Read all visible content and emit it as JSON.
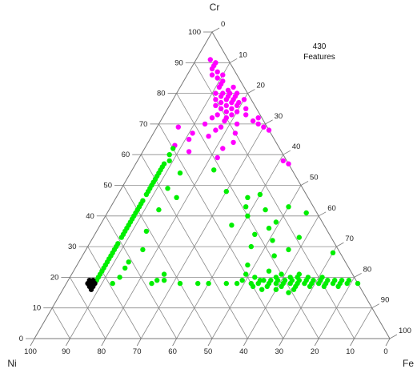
{
  "legend": {
    "count": "430",
    "label": "Features"
  },
  "chart_data": {
    "type": "scatter",
    "subtype": "ternary",
    "title": "",
    "vertices": {
      "top": "Cr",
      "left": "Ni",
      "right": "Fe"
    },
    "ticks": [
      0,
      10,
      20,
      30,
      40,
      50,
      60,
      70,
      80,
      90,
      100
    ],
    "grid": true,
    "legend_placement": "top-right",
    "series": [
      {
        "color": "#ff00ff",
        "points": [
          {
            "Cr": 91,
            "Ni": 5,
            "Fe": 4
          },
          {
            "Cr": 90,
            "Ni": 4,
            "Fe": 6
          },
          {
            "Cr": 89,
            "Ni": 5,
            "Fe": 6
          },
          {
            "Cr": 88,
            "Ni": 6,
            "Fe": 6
          },
          {
            "Cr": 87,
            "Ni": 5,
            "Fe": 8
          },
          {
            "Cr": 86,
            "Ni": 7,
            "Fe": 7
          },
          {
            "Cr": 86,
            "Ni": 4,
            "Fe": 10
          },
          {
            "Cr": 85,
            "Ni": 6,
            "Fe": 9
          },
          {
            "Cr": 84,
            "Ni": 5,
            "Fe": 11
          },
          {
            "Cr": 83,
            "Ni": 6,
            "Fe": 11
          },
          {
            "Cr": 82,
            "Ni": 7,
            "Fe": 11
          },
          {
            "Cr": 82,
            "Ni": 3,
            "Fe": 15
          },
          {
            "Cr": 81,
            "Ni": 5,
            "Fe": 14
          },
          {
            "Cr": 80,
            "Ni": 9,
            "Fe": 11
          },
          {
            "Cr": 80,
            "Ni": 7,
            "Fe": 13
          },
          {
            "Cr": 80,
            "Ni": 5,
            "Fe": 15
          },
          {
            "Cr": 80,
            "Ni": 3,
            "Fe": 17
          },
          {
            "Cr": 79,
            "Ni": 8,
            "Fe": 13
          },
          {
            "Cr": 79,
            "Ni": 6,
            "Fe": 15
          },
          {
            "Cr": 79,
            "Ni": 4,
            "Fe": 17
          },
          {
            "Cr": 78,
            "Ni": 10,
            "Fe": 12
          },
          {
            "Cr": 78,
            "Ni": 7,
            "Fe": 15
          },
          {
            "Cr": 78,
            "Ni": 5,
            "Fe": 17
          },
          {
            "Cr": 78,
            "Ni": 2,
            "Fe": 20
          },
          {
            "Cr": 77,
            "Ni": 9,
            "Fe": 14
          },
          {
            "Cr": 77,
            "Ni": 6,
            "Fe": 17
          },
          {
            "Cr": 77,
            "Ni": 4,
            "Fe": 19
          },
          {
            "Cr": 76,
            "Ni": 11,
            "Fe": 13
          },
          {
            "Cr": 76,
            "Ni": 8,
            "Fe": 16
          },
          {
            "Cr": 76,
            "Ni": 5,
            "Fe": 19
          },
          {
            "Cr": 75,
            "Ni": 10,
            "Fe": 15
          },
          {
            "Cr": 75,
            "Ni": 7,
            "Fe": 18
          },
          {
            "Cr": 75,
            "Ni": 3,
            "Fe": 22
          },
          {
            "Cr": 74,
            "Ni": 9,
            "Fe": 17
          },
          {
            "Cr": 74,
            "Ni": 6,
            "Fe": 20
          },
          {
            "Cr": 73,
            "Ni": 12,
            "Fe": 15
          },
          {
            "Cr": 73,
            "Ni": 8,
            "Fe": 19
          },
          {
            "Cr": 73,
            "Ni": 4,
            "Fe": 23
          },
          {
            "Cr": 72,
            "Ni": 14,
            "Fe": 14
          },
          {
            "Cr": 72,
            "Ni": 10,
            "Fe": 18
          },
          {
            "Cr": 72,
            "Ni": 1,
            "Fe": 27
          },
          {
            "Cr": 71,
            "Ni": 11,
            "Fe": 18
          },
          {
            "Cr": 71,
            "Ni": 3,
            "Fe": 26
          },
          {
            "Cr": 70,
            "Ni": 17,
            "Fe": 13
          },
          {
            "Cr": 70,
            "Ni": 8,
            "Fe": 22
          },
          {
            "Cr": 70,
            "Ni": 2,
            "Fe": 28
          },
          {
            "Cr": 69,
            "Ni": 25,
            "Fe": 6
          },
          {
            "Cr": 69,
            "Ni": 13,
            "Fe": 18
          },
          {
            "Cr": 69,
            "Ni": 1,
            "Fe": 30
          },
          {
            "Cr": 68,
            "Ni": 15,
            "Fe": 17
          },
          {
            "Cr": 68,
            "Ni": 0,
            "Fe": 32
          },
          {
            "Cr": 67,
            "Ni": 22,
            "Fe": 11
          },
          {
            "Cr": 67,
            "Ni": 10,
            "Fe": 23
          },
          {
            "Cr": 66,
            "Ni": 18,
            "Fe": 16
          },
          {
            "Cr": 65,
            "Ni": 24,
            "Fe": 11
          },
          {
            "Cr": 64,
            "Ni": 12,
            "Fe": 24
          },
          {
            "Cr": 63,
            "Ni": 29,
            "Fe": 8
          },
          {
            "Cr": 62,
            "Ni": 16,
            "Fe": 22
          },
          {
            "Cr": 61,
            "Ni": 26,
            "Fe": 13
          },
          {
            "Cr": 59,
            "Ni": 19,
            "Fe": 22
          },
          {
            "Cr": 58,
            "Ni": 1,
            "Fe": 41
          },
          {
            "Cr": 57,
            "Ni": 0,
            "Fe": 43
          }
        ]
      },
      {
        "color": "#00ee00",
        "points": [
          {
            "Cr": 62,
            "Ni": 30,
            "Fe": 8
          },
          {
            "Cr": 60,
            "Ni": 32,
            "Fe": 8
          },
          {
            "Cr": 58,
            "Ni": 33,
            "Fe": 9
          },
          {
            "Cr": 57,
            "Ni": 35,
            "Fe": 8
          },
          {
            "Cr": 56,
            "Ni": 36,
            "Fe": 8
          },
          {
            "Cr": 55,
            "Ni": 37,
            "Fe": 8
          },
          {
            "Cr": 54,
            "Ni": 38,
            "Fe": 8
          },
          {
            "Cr": 53,
            "Ni": 39,
            "Fe": 8
          },
          {
            "Cr": 52,
            "Ni": 40,
            "Fe": 8
          },
          {
            "Cr": 51,
            "Ni": 41,
            "Fe": 8
          },
          {
            "Cr": 50,
            "Ni": 42,
            "Fe": 8
          },
          {
            "Cr": 49,
            "Ni": 43,
            "Fe": 8
          },
          {
            "Cr": 48,
            "Ni": 44,
            "Fe": 8
          },
          {
            "Cr": 47,
            "Ni": 45,
            "Fe": 8
          },
          {
            "Cr": 45,
            "Ni": 47,
            "Fe": 8
          },
          {
            "Cr": 44,
            "Ni": 48,
            "Fe": 8
          },
          {
            "Cr": 43,
            "Ni": 49,
            "Fe": 8
          },
          {
            "Cr": 42,
            "Ni": 50,
            "Fe": 8
          },
          {
            "Cr": 41,
            "Ni": 51,
            "Fe": 8
          },
          {
            "Cr": 40,
            "Ni": 52,
            "Fe": 8
          },
          {
            "Cr": 39,
            "Ni": 53,
            "Fe": 8
          },
          {
            "Cr": 38,
            "Ni": 54,
            "Fe": 8
          },
          {
            "Cr": 37,
            "Ni": 55,
            "Fe": 8
          },
          {
            "Cr": 36,
            "Ni": 56,
            "Fe": 8
          },
          {
            "Cr": 35,
            "Ni": 57,
            "Fe": 8
          },
          {
            "Cr": 34,
            "Ni": 58,
            "Fe": 8
          },
          {
            "Cr": 33,
            "Ni": 59,
            "Fe": 8
          },
          {
            "Cr": 31,
            "Ni": 61,
            "Fe": 8
          },
          {
            "Cr": 30,
            "Ni": 62,
            "Fe": 8
          },
          {
            "Cr": 29,
            "Ni": 63,
            "Fe": 8
          },
          {
            "Cr": 28,
            "Ni": 64,
            "Fe": 8
          },
          {
            "Cr": 27,
            "Ni": 65,
            "Fe": 8
          },
          {
            "Cr": 26,
            "Ni": 66,
            "Fe": 8
          },
          {
            "Cr": 25,
            "Ni": 67,
            "Fe": 8
          },
          {
            "Cr": 24,
            "Ni": 68,
            "Fe": 8
          },
          {
            "Cr": 23,
            "Ni": 69,
            "Fe": 8
          },
          {
            "Cr": 22,
            "Ni": 70,
            "Fe": 8
          },
          {
            "Cr": 21,
            "Ni": 71,
            "Fe": 8
          },
          {
            "Cr": 20,
            "Ni": 72,
            "Fe": 8
          },
          {
            "Cr": 19,
            "Ni": 73,
            "Fe": 8
          },
          {
            "Cr": 54,
            "Ni": 32,
            "Fe": 14
          },
          {
            "Cr": 49,
            "Ni": 38,
            "Fe": 13
          },
          {
            "Cr": 46,
            "Ni": 37,
            "Fe": 17
          },
          {
            "Cr": 42,
            "Ni": 44,
            "Fe": 14
          },
          {
            "Cr": 35,
            "Ni": 51,
            "Fe": 14
          },
          {
            "Cr": 29,
            "Ni": 55,
            "Fe": 16
          },
          {
            "Cr": 25,
            "Ni": 61,
            "Fe": 14
          },
          {
            "Cr": 23,
            "Ni": 63,
            "Fe": 14
          },
          {
            "Cr": 20,
            "Ni": 66,
            "Fe": 14
          },
          {
            "Cr": 18,
            "Ni": 69,
            "Fe": 13
          },
          {
            "Cr": 55,
            "Ni": 22,
            "Fe": 23
          },
          {
            "Cr": 48,
            "Ni": 22,
            "Fe": 30
          },
          {
            "Cr": 46,
            "Ni": 17,
            "Fe": 37
          },
          {
            "Cr": 43,
            "Ni": 19,
            "Fe": 38
          },
          {
            "Cr": 42,
            "Ni": 14,
            "Fe": 44
          },
          {
            "Cr": 40,
            "Ni": 20,
            "Fe": 40
          },
          {
            "Cr": 38,
            "Ni": 13,
            "Fe": 49
          },
          {
            "Cr": 37,
            "Ni": 26,
            "Fe": 37
          },
          {
            "Cr": 36,
            "Ni": 16,
            "Fe": 48
          },
          {
            "Cr": 34,
            "Ni": 21,
            "Fe": 45
          },
          {
            "Cr": 32,
            "Ni": 17,
            "Fe": 51
          },
          {
            "Cr": 30,
            "Ni": 24,
            "Fe": 46
          },
          {
            "Cr": 29,
            "Ni": 14,
            "Fe": 57
          },
          {
            "Cr": 27,
            "Ni": 19,
            "Fe": 54
          },
          {
            "Cr": 24,
            "Ni": 28,
            "Fe": 48
          },
          {
            "Cr": 22,
            "Ni": 23,
            "Fe": 55
          },
          {
            "Cr": 20,
            "Ni": 16,
            "Fe": 64
          },
          {
            "Cr": 47,
            "Ni": 13,
            "Fe": 40
          },
          {
            "Cr": 43,
            "Ni": 7,
            "Fe": 50
          },
          {
            "Cr": 41,
            "Ni": 3,
            "Fe": 56
          },
          {
            "Cr": 33,
            "Ni": 9,
            "Fe": 58
          },
          {
            "Cr": 28,
            "Ni": 2,
            "Fe": 70
          },
          {
            "Cr": 21,
            "Ni": 53,
            "Fe": 26
          },
          {
            "Cr": 19,
            "Ni": 56,
            "Fe": 25
          },
          {
            "Cr": 19,
            "Ni": 54,
            "Fe": 27
          },
          {
            "Cr": 18,
            "Ni": 34,
            "Fe": 48
          },
          {
            "Cr": 18,
            "Ni": 30,
            "Fe": 52
          },
          {
            "Cr": 19,
            "Ni": 32,
            "Fe": 49
          },
          {
            "Cr": 18,
            "Ni": 37,
            "Fe": 45
          },
          {
            "Cr": 19,
            "Ni": 27,
            "Fe": 54
          },
          {
            "Cr": 18,
            "Ni": 42,
            "Fe": 40
          },
          {
            "Cr": 18,
            "Ni": 28,
            "Fe": 54
          },
          {
            "Cr": 19,
            "Ni": 26,
            "Fe": 55
          },
          {
            "Cr": 18,
            "Ni": 25,
            "Fe": 57
          },
          {
            "Cr": 19,
            "Ni": 24,
            "Fe": 57
          },
          {
            "Cr": 18,
            "Ni": 23,
            "Fe": 59
          },
          {
            "Cr": 19,
            "Ni": 22,
            "Fe": 59
          },
          {
            "Cr": 18,
            "Ni": 21,
            "Fe": 61
          },
          {
            "Cr": 19,
            "Ni": 20,
            "Fe": 61
          },
          {
            "Cr": 18,
            "Ni": 19,
            "Fe": 63
          },
          {
            "Cr": 19,
            "Ni": 18,
            "Fe": 63
          },
          {
            "Cr": 18,
            "Ni": 17,
            "Fe": 65
          },
          {
            "Cr": 19,
            "Ni": 16,
            "Fe": 65
          },
          {
            "Cr": 18,
            "Ni": 15,
            "Fe": 67
          },
          {
            "Cr": 19,
            "Ni": 14,
            "Fe": 67
          },
          {
            "Cr": 18,
            "Ni": 13,
            "Fe": 69
          },
          {
            "Cr": 19,
            "Ni": 12,
            "Fe": 69
          },
          {
            "Cr": 18,
            "Ni": 11,
            "Fe": 71
          },
          {
            "Cr": 19,
            "Ni": 10,
            "Fe": 71
          },
          {
            "Cr": 18,
            "Ni": 9,
            "Fe": 73
          },
          {
            "Cr": 19,
            "Ni": 8,
            "Fe": 73
          },
          {
            "Cr": 18,
            "Ni": 7,
            "Fe": 75
          },
          {
            "Cr": 19,
            "Ni": 6,
            "Fe": 75
          },
          {
            "Cr": 18,
            "Ni": 5,
            "Fe": 77
          },
          {
            "Cr": 19,
            "Ni": 4,
            "Fe": 77
          },
          {
            "Cr": 18,
            "Ni": 3,
            "Fe": 79
          },
          {
            "Cr": 19,
            "Ni": 2,
            "Fe": 79
          },
          {
            "Cr": 18,
            "Ni": 0,
            "Fe": 82
          },
          {
            "Cr": 17,
            "Ni": 30,
            "Fe": 53
          },
          {
            "Cr": 17,
            "Ni": 26,
            "Fe": 57
          },
          {
            "Cr": 17,
            "Ni": 22,
            "Fe": 61
          },
          {
            "Cr": 17,
            "Ni": 18,
            "Fe": 65
          },
          {
            "Cr": 17,
            "Ni": 14,
            "Fe": 69
          },
          {
            "Cr": 17,
            "Ni": 10,
            "Fe": 73
          },
          {
            "Cr": 17,
            "Ni": 6,
            "Fe": 77
          },
          {
            "Cr": 20,
            "Ni": 28,
            "Fe": 52
          },
          {
            "Cr": 20,
            "Ni": 22,
            "Fe": 58
          },
          {
            "Cr": 20,
            "Ni": 18,
            "Fe": 62
          },
          {
            "Cr": 20,
            "Ni": 13,
            "Fe": 67
          },
          {
            "Cr": 20,
            "Ni": 9,
            "Fe": 71
          },
          {
            "Cr": 16,
            "Ni": 24,
            "Fe": 60
          },
          {
            "Cr": 16,
            "Ni": 19,
            "Fe": 65
          },
          {
            "Cr": 15,
            "Ni": 21,
            "Fe": 64
          },
          {
            "Cr": 21,
            "Ni": 20,
            "Fe": 59
          },
          {
            "Cr": 21,
            "Ni": 15,
            "Fe": 64
          },
          {
            "Cr": 18,
            "Ni": 58,
            "Fe": 24
          },
          {
            "Cr": 18,
            "Ni": 50,
            "Fe": 32
          },
          {
            "Cr": 18,
            "Ni": 45,
            "Fe": 37
          },
          {
            "Cr": 16,
            "Ni": 28,
            "Fe": 56
          },
          {
            "Cr": 21,
            "Ni": 30,
            "Fe": 49
          }
        ]
      },
      {
        "color": "#000000",
        "points": [
          {
            "Cr": 19,
            "Ni": 74,
            "Fe": 7
          },
          {
            "Cr": 18,
            "Ni": 75,
            "Fe": 7
          },
          {
            "Cr": 17,
            "Ni": 76,
            "Fe": 7
          },
          {
            "Cr": 18,
            "Ni": 74,
            "Fe": 8
          },
          {
            "Cr": 17,
            "Ni": 75,
            "Fe": 8
          },
          {
            "Cr": 16,
            "Ni": 76,
            "Fe": 8
          },
          {
            "Cr": 19,
            "Ni": 75,
            "Fe": 6
          },
          {
            "Cr": 18,
            "Ni": 76,
            "Fe": 6
          }
        ]
      }
    ]
  }
}
